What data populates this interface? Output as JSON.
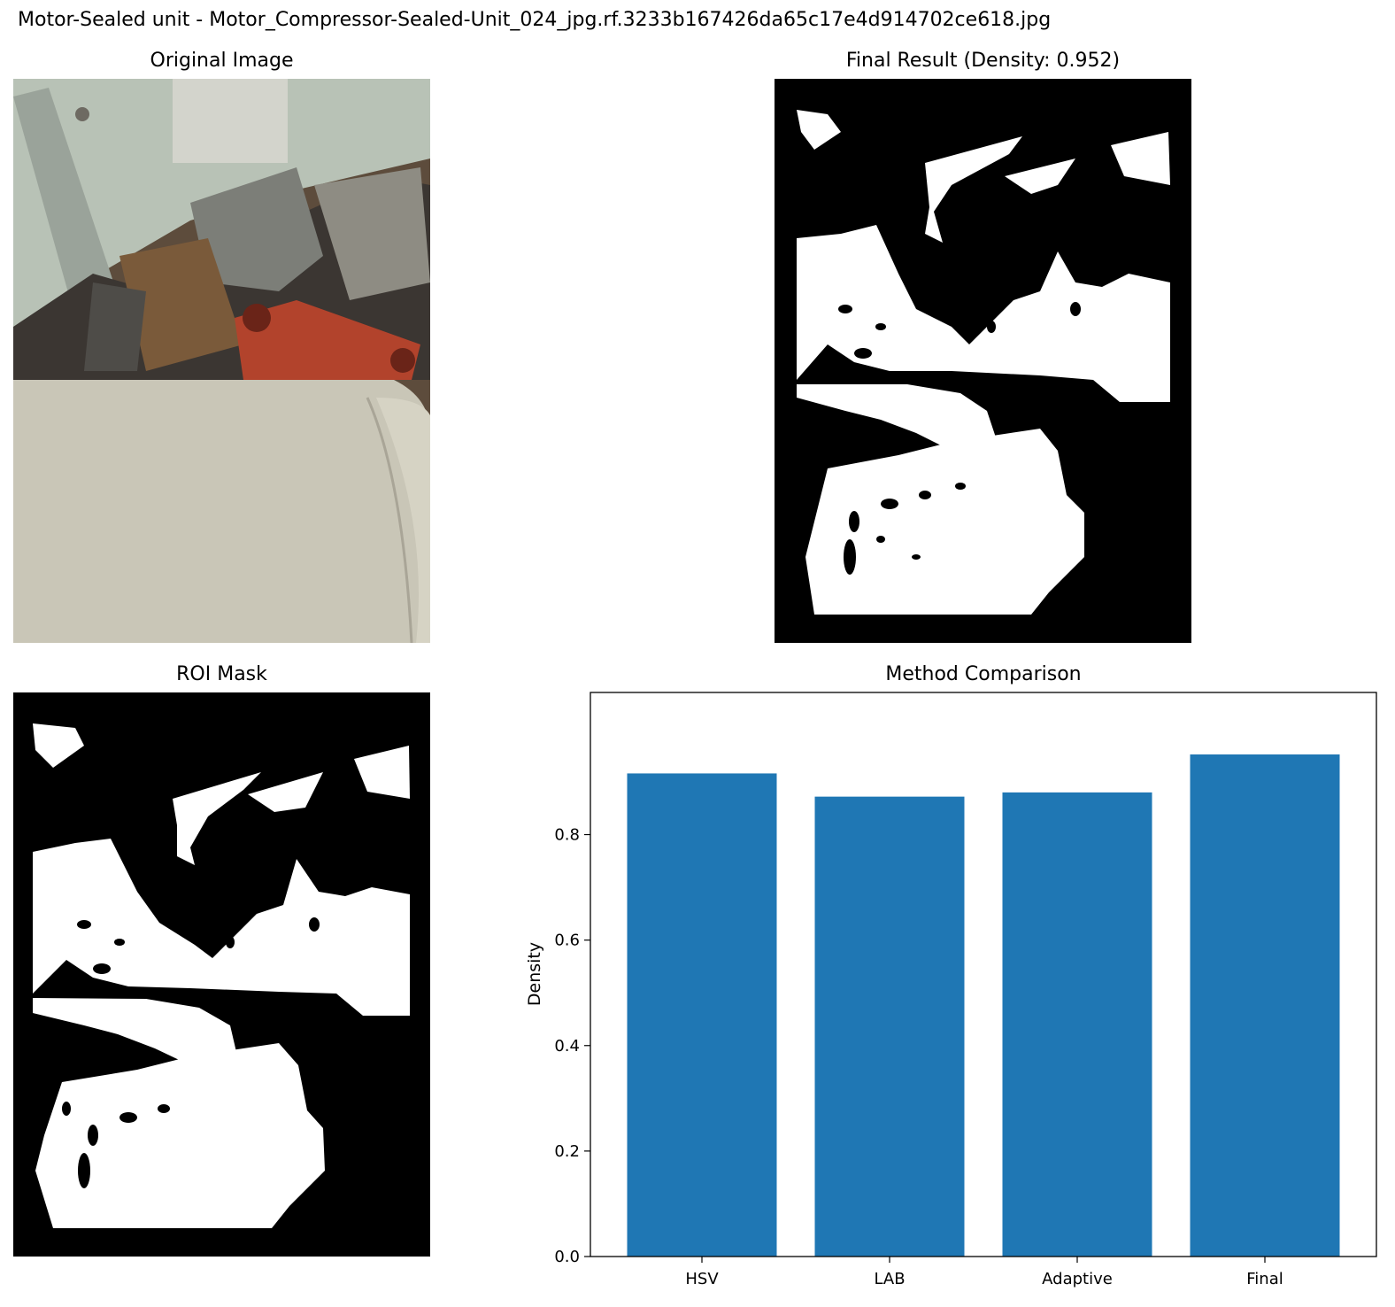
{
  "figure": {
    "suptitle": "Motor-Sealed unit - Motor_Compressor-Sealed-Unit_024_jpg.rf.3233b167426da65c17e4d914702ce618.jpg"
  },
  "panels": {
    "original": {
      "title": "Original Image"
    },
    "final": {
      "title": "Final Result (Density: 0.952)"
    },
    "roi": {
      "title": "ROI Mask"
    },
    "comparison": {
      "title": "Method Comparison"
    }
  },
  "colors": {
    "bar": "#1f77b4",
    "mask_fg": "#ffffff",
    "mask_bg": "#000000"
  },
  "chart_data": {
    "type": "bar",
    "title": "Method Comparison",
    "categories": [
      "HSV",
      "LAB",
      "Adaptive",
      "Final"
    ],
    "values": [
      0.916,
      0.872,
      0.88,
      0.952
    ],
    "xlabel": "",
    "ylabel": "Density",
    "ylim": [
      0,
      1.0
    ],
    "yticks": [
      0.0,
      0.2,
      0.4,
      0.6,
      0.8
    ],
    "ytick_labels": [
      "0.0",
      "0.2",
      "0.4",
      "0.6",
      "0.8"
    ],
    "grid": false,
    "legend": "none"
  }
}
